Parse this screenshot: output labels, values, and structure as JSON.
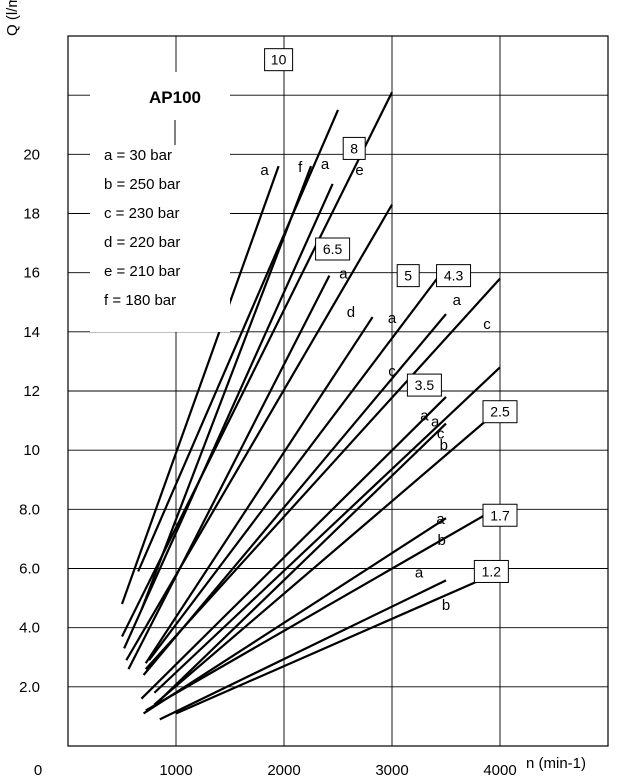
{
  "chart_data": {
    "type": "line",
    "title": "AP100",
    "xlabel": "n (min-1)",
    "ylabel": "Q (l/min)",
    "xlim": [
      0,
      5000
    ],
    "ylim": [
      0,
      24
    ],
    "grid": true,
    "x_ticks": [
      "0",
      "1000",
      "2000",
      "3000",
      "4000"
    ],
    "y_ticks": [
      "2.0",
      "4.0",
      "6.0",
      "8.0",
      "10",
      "12",
      "14",
      "16",
      "18",
      "20"
    ],
    "legend": [
      "a =  30 bar",
      "b = 250 bar",
      "c = 230 bar",
      "d = 220 bar",
      "e = 210 bar",
      "f = 180 bar"
    ],
    "series": [
      {
        "name": "10",
        "points": [
          [
            650,
            5.9
          ],
          [
            2500,
            21.5
          ]
        ]
      },
      {
        "name": "10",
        "points": [
          [
            500,
            4.8
          ],
          [
            1950,
            19.6
          ]
        ]
      },
      {
        "name": "10",
        "points": [
          [
            680,
            4.6
          ],
          [
            2250,
            19.6
          ]
        ]
      },
      {
        "name": "8",
        "points": [
          [
            500,
            3.7
          ],
          [
            3000,
            22.1
          ]
        ]
      },
      {
        "name": "8",
        "points": [
          [
            520,
            3.3
          ],
          [
            2450,
            19.0
          ]
        ]
      },
      {
        "name": "6.5",
        "points": [
          [
            540,
            2.9
          ],
          [
            3000,
            18.3
          ]
        ]
      },
      {
        "name": "6.5",
        "points": [
          [
            560,
            2.6
          ],
          [
            2420,
            15.9
          ]
        ]
      },
      {
        "name": "5",
        "points": [
          [
            720,
            2.8
          ],
          [
            2820,
            14.5
          ]
        ]
      },
      {
        "name": "5",
        "points": [
          [
            750,
            2.9
          ],
          [
            3500,
            16.2
          ]
        ]
      },
      {
        "name": "4.3",
        "points": [
          [
            700,
            2.4
          ],
          [
            3500,
            14.6
          ]
        ]
      },
      {
        "name": "4.3",
        "points": [
          [
            720,
            2.6
          ],
          [
            4000,
            15.8
          ]
        ]
      },
      {
        "name": "3.5",
        "points": [
          [
            680,
            1.6
          ],
          [
            3500,
            11.8
          ]
        ]
      },
      {
        "name": "3.5",
        "points": [
          [
            800,
            1.8
          ],
          [
            4000,
            12.8
          ]
        ]
      },
      {
        "name": "2.5",
        "points": [
          [
            780,
            1.3
          ],
          [
            3500,
            10.9
          ]
        ]
      },
      {
        "name": "2.5",
        "points": [
          [
            800,
            1.4
          ],
          [
            4000,
            11.4
          ]
        ]
      },
      {
        "name": "1.7",
        "points": [
          [
            700,
            1.1
          ],
          [
            3500,
            7.7
          ]
        ]
      },
      {
        "name": "1.7",
        "points": [
          [
            720,
            1.2
          ],
          [
            4000,
            8.1
          ]
        ]
      },
      {
        "name": "1.2",
        "points": [
          [
            850,
            0.9
          ],
          [
            3500,
            5.6
          ]
        ]
      },
      {
        "name": "1.2",
        "points": [
          [
            1000,
            1.1
          ],
          [
            4000,
            5.9
          ]
        ]
      }
    ],
    "box_labels": [
      {
        "text": "10",
        "x": 1950,
        "y": 23.2
      },
      {
        "text": "8",
        "x": 2650,
        "y": 20.2
      },
      {
        "text": "6.5",
        "x": 2450,
        "y": 16.8
      },
      {
        "text": "5",
        "x": 3150,
        "y": 15.9
      },
      {
        "text": "4.3",
        "x": 3570,
        "y": 15.9
      },
      {
        "text": "3.5",
        "x": 3300,
        "y": 12.2
      },
      {
        "text": "2.5",
        "x": 4000,
        "y": 11.3
      },
      {
        "text": "1.7",
        "x": 4000,
        "y": 7.8
      },
      {
        "text": "1.2",
        "x": 3920,
        "y": 5.9
      }
    ],
    "curve_labels": [
      {
        "text": "a",
        "x": 1820,
        "y": 19.3
      },
      {
        "text": "f",
        "x": 2150,
        "y": 19.4
      },
      {
        "text": "a",
        "x": 2380,
        "y": 19.5
      },
      {
        "text": "e",
        "x": 2700,
        "y": 19.3
      },
      {
        "text": "a",
        "x": 2550,
        "y": 15.8
      },
      {
        "text": "d",
        "x": 2620,
        "y": 14.5
      },
      {
        "text": "a",
        "x": 3000,
        "y": 14.3
      },
      {
        "text": "c",
        "x": 3000,
        "y": 12.5
      },
      {
        "text": "a",
        "x": 3600,
        "y": 14.9
      },
      {
        "text": "c",
        "x": 3880,
        "y": 14.1
      },
      {
        "text": "a",
        "x": 3300,
        "y": 11.0
      },
      {
        "text": "c",
        "x": 3450,
        "y": 10.4
      },
      {
        "text": "a",
        "x": 3400,
        "y": 10.8
      },
      {
        "text": "b",
        "x": 3480,
        "y": 10.0
      },
      {
        "text": "a",
        "x": 3450,
        "y": 7.5
      },
      {
        "text": "b",
        "x": 3460,
        "y": 6.8
      },
      {
        "text": "a",
        "x": 3250,
        "y": 5.7
      },
      {
        "text": "b",
        "x": 3500,
        "y": 4.6
      }
    ]
  }
}
